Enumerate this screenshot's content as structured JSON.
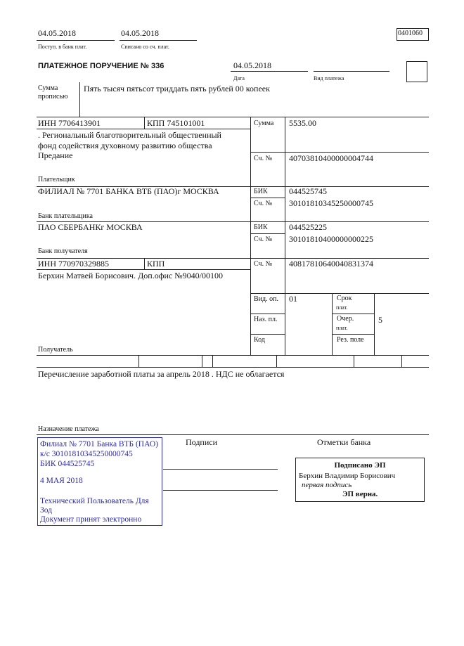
{
  "header": {
    "received_date": "04.05.2018",
    "received_label": "Поступ. в банк плат.",
    "debited_date": "04.05.2018",
    "debited_label": "Списано со сч. плат.",
    "form_code": "0401060"
  },
  "title": "ПЛАТЕЖНОЕ ПОРУЧЕНИЕ № 336",
  "date": "04.05.2018",
  "date_label": "Дата",
  "payment_type_label": "Вид платежа",
  "amount_words_label_1": "Сумма",
  "amount_words_label_2": "прописью",
  "amount_words": "Пять тысяч пятьсот триддать пять рублей 00 копеек",
  "payer": {
    "inn": "ИНН 7706413901",
    "kpp": "КПП 745101001",
    "name_lines": [
      ". Региональный благотворительный общественный",
      "фонд содействия духовному развитию общества",
      "Предание"
    ],
    "label": "Плательщик",
    "amount_label": "Сумма",
    "amount": "5535.00",
    "account_label": "Сч. №",
    "account": "40703810400000004744"
  },
  "payer_bank": {
    "name": "ФИЛИАЛ № 7701 БАНКА ВТБ (ПАО)г МОСКВА",
    "label": "Банк плательщика",
    "bik_label": "БИК",
    "bik": "044525745",
    "account_label": "Сч. №",
    "account": "30101810345250000745"
  },
  "payee_bank": {
    "name": "ПАО СБЕРБАНКг МОСКВА",
    "label": "Банк получателя",
    "bik_label": "БИК",
    "bik": "044525225",
    "account_label": "Сч. №",
    "account": "30101810400000000225"
  },
  "payee": {
    "inn": "ИНН 770970329885",
    "kpp": "КПП",
    "name": "Берхин Матвей Борисович. Доп.офис №9040/00100",
    "label": "Получатель",
    "account_label": "Сч. №",
    "account": "40817810640040831374",
    "op_type_label": "Вид. оп.",
    "op_type": "01",
    "purpose_code_label": "Наз. пл.",
    "code_label": "Код",
    "due_label_1": "Срок",
    "due_label_2": "плат.",
    "priority_label_1": "Очер.",
    "priority_label_2": "плат.",
    "priority": "5",
    "reserve_label": "Рез. поле"
  },
  "purpose": "Перечисление заработной платы за апрель 2018 . НДС не облагается",
  "purpose_label": "Назначение платежа",
  "signatures_label": "Подписи",
  "bank_marks_label": "Отметки банка",
  "bank_stamp": {
    "lines": [
      "Филиал № 7701 Банка ВТБ (ПАО)",
      "к/с 30101810345250000745",
      "БИК 044525745",
      "4 МАЯ 2018",
      "Технический Пользователь Для",
      "Зод",
      "Документ принят электронно"
    ],
    "color": "#2a2aa8"
  },
  "e_signature": {
    "title": "Подписано ЭП",
    "signer": "Берхин Владимир Борисович",
    "role": "первая подпись",
    "status": "ЭП верна."
  }
}
